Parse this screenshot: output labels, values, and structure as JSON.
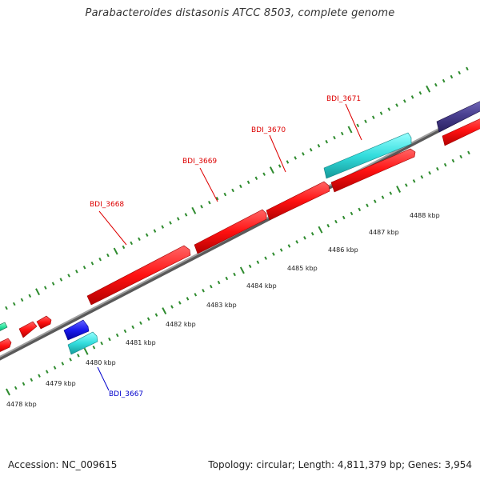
{
  "title": "Parabacteroides distasonis ATCC 8503, complete genome",
  "footer": {
    "accession": "Accession: NC_009615",
    "summary": "Topology: circular; Length: 4,811,379 bp; Genes: 3,954"
  },
  "colors": {
    "background": "#ffffff",
    "backbone": "#8c8c8c",
    "tick": "#2e8b2e",
    "gene_red": "#ff1111",
    "gene_cyan": "#33dddd",
    "gene_blue": "#1a1aee",
    "gene_purple": "#4a4090",
    "gene_teal": "#22dd99",
    "label_red": "#dd0000",
    "label_blue": "#0000cc"
  },
  "kbp_labels": [
    "4478 kbp",
    "4479 kbp",
    "4480 kbp",
    "4481 kbp",
    "4482 kbp",
    "4483 kbp",
    "4484 kbp",
    "4485 kbp",
    "4486 kbp",
    "4487 kbp",
    "4488 kbp"
  ],
  "gene_labels": [
    {
      "name": "BDI_3667",
      "color": "blue"
    },
    {
      "name": "BDI_3668",
      "color": "red"
    },
    {
      "name": "BDI_3669",
      "color": "red"
    },
    {
      "name": "BDI_3670",
      "color": "red"
    },
    {
      "name": "BDI_3671",
      "color": "red"
    }
  ]
}
